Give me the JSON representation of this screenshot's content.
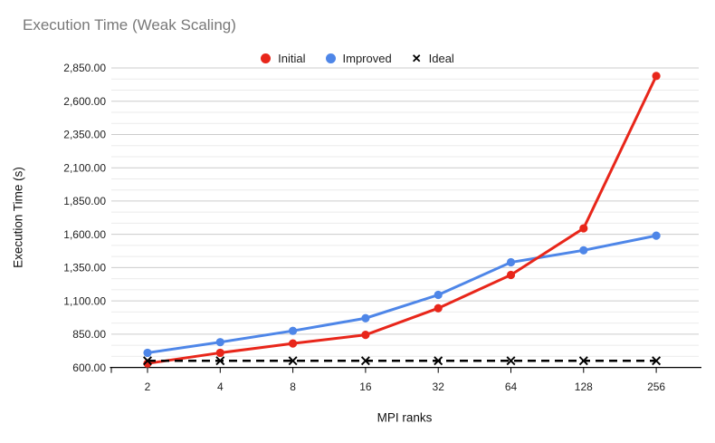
{
  "header": {
    "title": "Execution Time (Weak Scaling)",
    "title_color": "#787878"
  },
  "legend": {
    "position": "top",
    "items": [
      {
        "label": "Initial",
        "marker": "circle",
        "color": "#e8261a"
      },
      {
        "label": "Improved",
        "marker": "circle",
        "color": "#4e86e8"
      },
      {
        "label": "Ideal",
        "marker": "x",
        "color": "#000000"
      }
    ]
  },
  "chart_data": {
    "type": "line",
    "title": "Execution Time (Weak Scaling)",
    "xlabel": "MPI ranks",
    "ylabel": "Execution Time (s)",
    "categories": [
      "2",
      "4",
      "8",
      "16",
      "32",
      "64",
      "128",
      "256"
    ],
    "series": [
      {
        "name": "Initial",
        "color": "#e8261a",
        "line": "solid",
        "marker": "circle",
        "values": [
          630,
          710,
          780,
          845,
          1045,
          1295,
          1645,
          2790
        ]
      },
      {
        "name": "Improved",
        "color": "#4e86e8",
        "line": "solid",
        "marker": "circle",
        "values": [
          710,
          790,
          875,
          970,
          1145,
          1390,
          1480,
          1590
        ]
      },
      {
        "name": "Ideal",
        "color": "#000000",
        "line": "dashed",
        "marker": "x",
        "values": [
          650,
          650,
          650,
          650,
          650,
          650,
          650,
          650
        ]
      }
    ],
    "y_axis": {
      "min": 600,
      "max": 2850,
      "major_step": 250,
      "minors_per_major": 3,
      "tick_labels": [
        "600.00",
        "850.00",
        "1,100.00",
        "1,350.00",
        "1,600.00",
        "1,850.00",
        "2,100.00",
        "2,350.00",
        "2,600.00",
        "2,850.00"
      ]
    },
    "grid": {
      "horizontal": true,
      "vertical": false
    },
    "legend_position": "top"
  },
  "colors": {
    "grid_major": "#cccccc",
    "grid_minor": "#ebebeb",
    "axis": "#000000",
    "tick_label": "#1f1f1f"
  }
}
